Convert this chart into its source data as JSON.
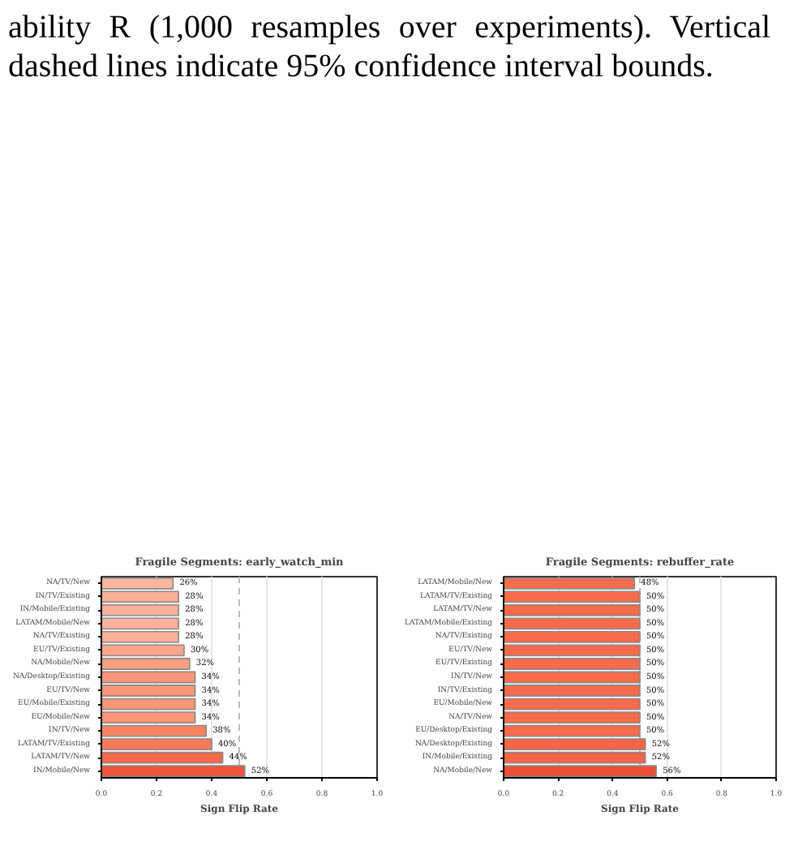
{
  "chart_data": [
    {
      "type": "bar",
      "orientation": "horizontal",
      "title": "Fragile Segments: early_watch_min",
      "xlabel": "Sign Flip Rate",
      "annotations": [
        "ability R (1,000 resamples over experiments). Vertical dashed lines indicate 95% confidence interval bounds."
      ],
      "categories": [
        "NA/TV/New",
        "IN/TV/Existing",
        "IN/Mobile/Existing",
        "LATAM/Mobile/New",
        "NA/TV/Existing",
        "EU/TV/Existing",
        "NA/Mobile/New",
        "NA/Desktop/Existing",
        "EU/TV/New",
        "EU/Mobile/Existing",
        "EU/Mobile/New",
        "IN/TV/New",
        "LATAM/TV/Existing",
        "LATAM/TV/New",
        "IN/Mobile/New"
      ],
      "values": [
        0.26,
        0.28,
        0.28,
        0.28,
        0.28,
        0.3,
        0.32,
        0.34,
        0.34,
        0.34,
        0.34,
        0.38,
        0.4,
        0.44,
        0.52
      ],
      "value_labels": [
        "26%",
        "28%",
        "28%",
        "28%",
        "28%",
        "30%",
        "32%",
        "34%",
        "34%",
        "34%",
        "34%",
        "38%",
        "40%",
        "44%",
        "52%"
      ],
      "colors": [
        "#fbb69c",
        "#fbb09a",
        "#fbb09a",
        "#fbb09a",
        "#fbb09a",
        "#fca588",
        "#fc9e80",
        "#fc9576",
        "#fc9576",
        "#fc9576",
        "#fc9576",
        "#fb8263",
        "#fb7a5a",
        "#f9694b",
        "#f0533b"
      ],
      "xlim": [
        0,
        1
      ],
      "xticks": [
        {
          "value": 0,
          "label": "0.0"
        },
        {
          "value": 0.2,
          "label": "0.2"
        },
        {
          "value": 0.4,
          "label": "0.4"
        },
        {
          "value": 0.6,
          "label": "0.6"
        },
        {
          "value": 0.8,
          "label": "0.8"
        },
        {
          "value": 1,
          "label": "1.0"
        }
      ],
      "grid": "x",
      "ref_lines": [
        {
          "axis": "x",
          "value": 0.5,
          "color": "#bbbbbb",
          "line_style": "dashed"
        }
      ]
    },
    {
      "type": "bar",
      "orientation": "horizontal",
      "title": "Fragile Segments: rebuffer_rate",
      "xlabel": "Sign Flip Rate",
      "categories": [
        "LATAM/Mobile/New",
        "LATAM/TV/Existing",
        "LATAM/TV/New",
        "LATAM/Mobile/Existing",
        "NA/TV/Existing",
        "EU/TV/New",
        "EU/TV/Existing",
        "IN/TV/New",
        "IN/TV/Existing",
        "EU/Mobile/New",
        "NA/TV/New",
        "EU/Desktop/Existing",
        "NA/Desktop/Existing",
        "IN/Mobile/Existing",
        "NA/Mobile/New"
      ],
      "values": [
        0.48,
        0.5,
        0.5,
        0.5,
        0.5,
        0.5,
        0.5,
        0.5,
        0.5,
        0.5,
        0.5,
        0.5,
        0.52,
        0.52,
        0.56
      ],
      "value_labels": [
        "48%",
        "50%",
        "50%",
        "50%",
        "50%",
        "50%",
        "50%",
        "50%",
        "50%",
        "50%",
        "50%",
        "50%",
        "52%",
        "52%",
        "56%"
      ],
      "colors": [
        "#fb6c4c",
        "#fb6a4a",
        "#fb6a4a",
        "#fb6a4a",
        "#fb6a4a",
        "#fb6a4a",
        "#fb6a4a",
        "#fb6a4a",
        "#fb6a4a",
        "#fb6a4a",
        "#fb6a4a",
        "#fb6a4a",
        "#f86446",
        "#f86446",
        "#ef4c36"
      ],
      "xlim": [
        0,
        1
      ],
      "xticks": [
        {
          "value": 0,
          "label": "0.0"
        },
        {
          "value": 0.2,
          "label": "0.2"
        },
        {
          "value": 0.4,
          "label": "0.4"
        },
        {
          "value": 0.6,
          "label": "0.6"
        },
        {
          "value": 0.8,
          "label": "0.8"
        },
        {
          "value": 1,
          "label": "1.0"
        }
      ],
      "grid": "x",
      "ref_lines": [
        {
          "axis": "x",
          "value": 0.5,
          "color": "#bbbbbb",
          "line_style": "dashed"
        }
      ]
    }
  ]
}
